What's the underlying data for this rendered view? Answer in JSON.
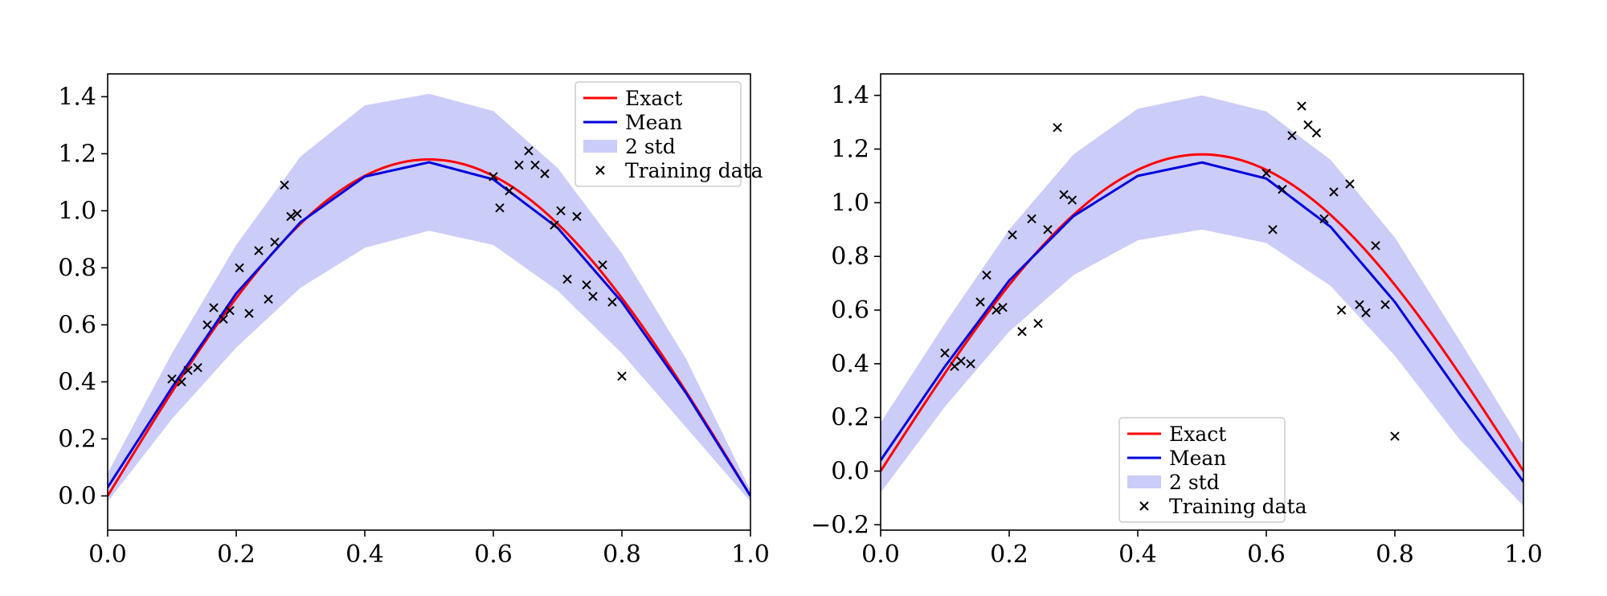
{
  "chart_data": [
    {
      "type": "line",
      "title": "",
      "xlabel": "",
      "ylabel": "",
      "xlim": [
        0.0,
        1.0
      ],
      "ylim": [
        -0.12,
        1.48
      ],
      "grid": false,
      "legend_position": "top-right",
      "x_ticks": [
        "0.0",
        "0.2",
        "0.4",
        "0.6",
        "0.8",
        "1.0"
      ],
      "y_ticks": [
        "0.0",
        "0.2",
        "0.4",
        "0.6",
        "0.8",
        "1.0",
        "1.2",
        "1.4"
      ],
      "legend": [
        "Exact",
        "Mean",
        "2 std",
        "Training data"
      ],
      "colors": {
        "exact": "#ff0000",
        "mean": "#0000dd",
        "band": "#ccccf9",
        "points": "#000000"
      },
      "series": [
        {
          "name": "Exact",
          "function": "1.18*sin(pi*x)"
        },
        {
          "name": "Mean",
          "x": [
            0.0,
            0.1,
            0.2,
            0.3,
            0.4,
            0.5,
            0.6,
            0.7,
            0.8,
            0.9,
            1.0
          ],
          "values": [
            0.03,
            0.38,
            0.71,
            0.96,
            1.12,
            1.17,
            1.11,
            0.94,
            0.68,
            0.36,
            0.0
          ]
        },
        {
          "name": "2 std",
          "x": [
            0.0,
            0.1,
            0.2,
            0.3,
            0.4,
            0.5,
            0.6,
            0.7,
            0.8,
            0.9,
            1.0
          ],
          "lower": [
            -0.02,
            0.27,
            0.52,
            0.73,
            0.87,
            0.93,
            0.88,
            0.72,
            0.5,
            0.24,
            -0.02
          ],
          "upper": [
            0.08,
            0.5,
            0.88,
            1.19,
            1.37,
            1.41,
            1.35,
            1.15,
            0.85,
            0.48,
            0.02
          ]
        }
      ],
      "training_data": [
        [
          0.1,
          0.41
        ],
        [
          0.115,
          0.4
        ],
        [
          0.125,
          0.44
        ],
        [
          0.14,
          0.45
        ],
        [
          0.155,
          0.6
        ],
        [
          0.165,
          0.66
        ],
        [
          0.18,
          0.62
        ],
        [
          0.19,
          0.65
        ],
        [
          0.205,
          0.8
        ],
        [
          0.22,
          0.64
        ],
        [
          0.235,
          0.86
        ],
        [
          0.25,
          0.69
        ],
        [
          0.26,
          0.89
        ],
        [
          0.275,
          1.09
        ],
        [
          0.285,
          0.98
        ],
        [
          0.295,
          0.99
        ],
        [
          0.6,
          1.12
        ],
        [
          0.61,
          1.01
        ],
        [
          0.625,
          1.07
        ],
        [
          0.64,
          1.16
        ],
        [
          0.655,
          1.21
        ],
        [
          0.665,
          1.16
        ],
        [
          0.68,
          1.13
        ],
        [
          0.695,
          0.95
        ],
        [
          0.705,
          1.0
        ],
        [
          0.715,
          0.76
        ],
        [
          0.73,
          0.98
        ],
        [
          0.745,
          0.74
        ],
        [
          0.755,
          0.7
        ],
        [
          0.77,
          0.81
        ],
        [
          0.785,
          0.68
        ],
        [
          0.8,
          0.42
        ]
      ]
    },
    {
      "type": "line",
      "title": "",
      "xlabel": "",
      "ylabel": "",
      "xlim": [
        0.0,
        1.0
      ],
      "ylim": [
        -0.22,
        1.48
      ],
      "grid": false,
      "legend_position": "lower-center",
      "x_ticks": [
        "0.0",
        "0.2",
        "0.4",
        "0.6",
        "0.8",
        "1.0"
      ],
      "y_ticks": [
        "−0.2",
        "0.0",
        "0.2",
        "0.4",
        "0.6",
        "0.8",
        "1.0",
        "1.2",
        "1.4"
      ],
      "legend": [
        "Exact",
        "Mean",
        "2 std",
        "Training data"
      ],
      "colors": {
        "exact": "#ff0000",
        "mean": "#0000dd",
        "band": "#ccccf9",
        "points": "#000000"
      },
      "series": [
        {
          "name": "Exact",
          "function": "1.18*sin(pi*x)"
        },
        {
          "name": "Mean",
          "x": [
            0.0,
            0.1,
            0.2,
            0.3,
            0.4,
            0.5,
            0.6,
            0.7,
            0.8,
            0.9,
            1.0
          ],
          "values": [
            0.04,
            0.39,
            0.71,
            0.95,
            1.1,
            1.15,
            1.09,
            0.91,
            0.63,
            0.29,
            -0.04
          ]
        },
        {
          "name": "2 std",
          "x": [
            0.0,
            0.1,
            0.2,
            0.3,
            0.4,
            0.5,
            0.6,
            0.7,
            0.8,
            0.9,
            1.0
          ],
          "lower": [
            -0.08,
            0.24,
            0.52,
            0.73,
            0.86,
            0.9,
            0.85,
            0.69,
            0.43,
            0.12,
            -0.13
          ],
          "upper": [
            0.18,
            0.55,
            0.9,
            1.18,
            1.35,
            1.4,
            1.34,
            1.16,
            0.87,
            0.49,
            0.1
          ]
        }
      ],
      "training_data": [
        [
          0.1,
          0.44
        ],
        [
          0.115,
          0.39
        ],
        [
          0.125,
          0.41
        ],
        [
          0.14,
          0.4
        ],
        [
          0.155,
          0.63
        ],
        [
          0.165,
          0.73
        ],
        [
          0.18,
          0.6
        ],
        [
          0.19,
          0.61
        ],
        [
          0.205,
          0.88
        ],
        [
          0.22,
          0.52
        ],
        [
          0.235,
          0.94
        ],
        [
          0.245,
          0.55
        ],
        [
          0.26,
          0.9
        ],
        [
          0.275,
          1.28
        ],
        [
          0.285,
          1.03
        ],
        [
          0.298,
          1.01
        ],
        [
          0.6,
          1.11
        ],
        [
          0.61,
          0.9
        ],
        [
          0.625,
          1.05
        ],
        [
          0.64,
          1.25
        ],
        [
          0.655,
          1.36
        ],
        [
          0.665,
          1.29
        ],
        [
          0.678,
          1.26
        ],
        [
          0.69,
          0.94
        ],
        [
          0.705,
          1.04
        ],
        [
          0.717,
          0.6
        ],
        [
          0.73,
          1.07
        ],
        [
          0.745,
          0.62
        ],
        [
          0.755,
          0.59
        ],
        [
          0.77,
          0.84
        ],
        [
          0.785,
          0.62
        ],
        [
          0.8,
          0.13
        ]
      ]
    }
  ]
}
